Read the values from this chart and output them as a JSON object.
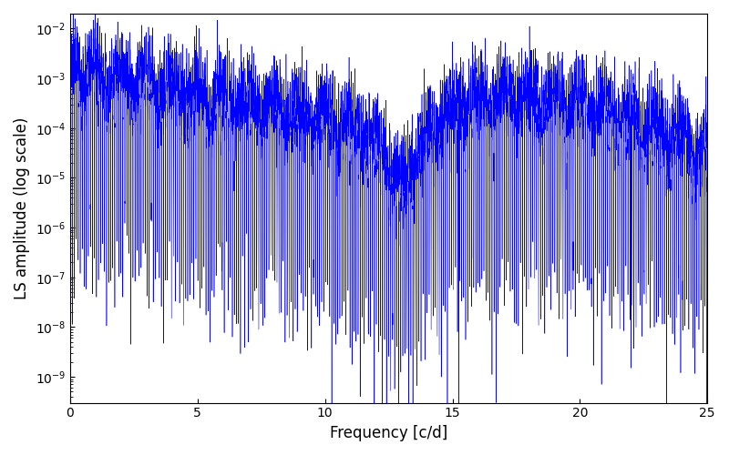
{
  "xlabel": "Frequency [c/d]",
  "ylabel": "LS amplitude (log scale)",
  "xlim": [
    0,
    25
  ],
  "ylim": [
    3e-10,
    0.02
  ],
  "xticks": [
    0,
    5,
    10,
    15,
    20,
    25
  ],
  "line_color": "#0000ff",
  "background_color": "#ffffff",
  "fig_width": 8.0,
  "fig_height": 5.0,
  "dpi": 100,
  "seed": 7,
  "n_points": 8000,
  "freq_max": 25.0
}
